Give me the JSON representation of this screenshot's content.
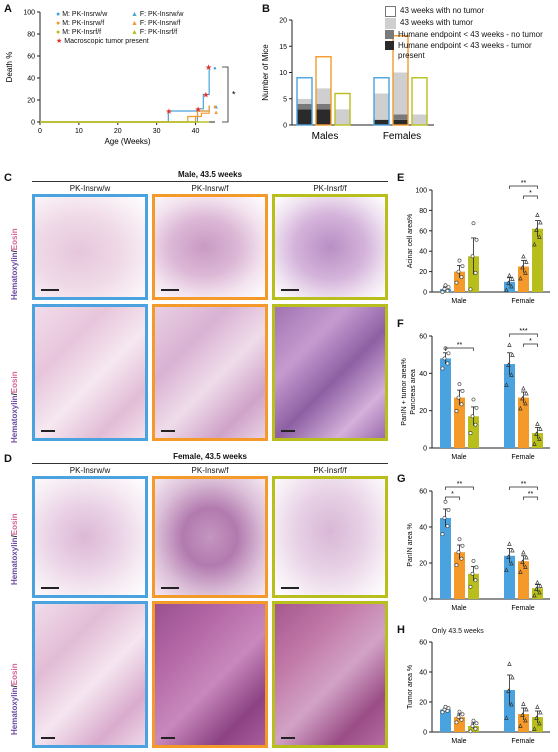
{
  "panels": {
    "a": "A",
    "b": "B",
    "c": "C",
    "d": "D",
    "e": "E",
    "f": "F",
    "g": "G",
    "h": "H"
  },
  "panelA": {
    "ylabel": "Death %",
    "xlabel": "Age (Weeks)",
    "yticks": [
      "100",
      "80",
      "60",
      "40",
      "20",
      "0"
    ],
    "xticks": [
      "0",
      "10",
      "20",
      "30",
      "40"
    ],
    "legend": [
      {
        "marker": "●",
        "color": "#4aa3df",
        "text": "M: PK-Insrw/w"
      },
      {
        "marker": "▲",
        "color": "#4aa3df",
        "text": "F: PK-Insrw/w"
      },
      {
        "marker": "●",
        "color": "#f39a2b",
        "text": "M: PK-Insrw/f"
      },
      {
        "marker": "▲",
        "color": "#f39a2b",
        "text": "F: PK-Insrw/f"
      },
      {
        "marker": "●",
        "color": "#b8bf1c",
        "text": "M: PK-Insrf/f"
      },
      {
        "marker": "▲",
        "color": "#b8bf1c",
        "text": "F: PK-Insrf/f"
      }
    ],
    "star_note": "Macroscopic tumor present",
    "sig": "*"
  },
  "panelB": {
    "ylabel": "Number of Mice",
    "yticks": [
      "20",
      "15",
      "10",
      "5",
      "0"
    ],
    "groups": [
      "Males",
      "Females"
    ],
    "legend": [
      {
        "swatch": "#ffffff",
        "text": "43 weeks with no tumor"
      },
      {
        "swatch": "#cfcfcf",
        "text": "43 weeks with tumor"
      },
      {
        "swatch": "#7a7a7a",
        "text": "Humane endpoint < 43 weeks - no tumor"
      },
      {
        "swatch": "#2a2a2a",
        "text": "Humane endpoint < 43 weeks - tumor present"
      }
    ]
  },
  "panelC": {
    "title": "Male, 43.5 weeks",
    "cols": [
      "PK-Insrw/w",
      "PK-Insrw/f",
      "PK-Insrf/f"
    ],
    "stain_h": "Hematoxylin",
    "stain_sep": "/",
    "stain_e": "Eosin"
  },
  "panelD": {
    "title": "Female, 43.5 weeks",
    "cols": [
      "PK-Insrw/w",
      "PK-Insrw/f",
      "PK-Insrf/f"
    ]
  },
  "panelE": {
    "ylabel": "Acinar cell area%",
    "yticks": [
      "100",
      "80",
      "60",
      "40",
      "20",
      "0"
    ],
    "groups": [
      "Male",
      "Female"
    ],
    "sig": [
      "**",
      "*"
    ]
  },
  "panelF": {
    "ylabel": "PanIN + tumor area%",
    "ylabel2": "Pancreas area",
    "yticks": [
      "60",
      "40",
      "20",
      "0"
    ],
    "groups": [
      "Male",
      "Female"
    ],
    "sig": [
      "**",
      "***",
      "*"
    ]
  },
  "panelG": {
    "ylabel": "PanIN area %",
    "yticks": [
      "60",
      "40",
      "20",
      "0"
    ],
    "groups": [
      "Male",
      "Female"
    ],
    "sig": [
      "**",
      "*",
      "**",
      "**"
    ]
  },
  "panelH": {
    "ylabel": "Tumor area %",
    "note": "Only 43.5 weeks",
    "yticks": [
      "60",
      "40",
      "20",
      "0"
    ],
    "groups": [
      "Male",
      "Female"
    ]
  },
  "chart_data": [
    {
      "type": "line",
      "panel": "A",
      "ylabel": "Death %",
      "xlabel": "Age (Weeks)",
      "xlim": [
        0,
        45
      ],
      "ylim": [
        0,
        100
      ],
      "series": [
        {
          "name": "M: PK-Insrw/w",
          "x": [
            0,
            40.5,
            42,
            43.5
          ],
          "y": [
            0,
            12,
            25,
            50
          ]
        },
        {
          "name": "F: PK-Insrw/w",
          "x": [
            0,
            33,
            40,
            43.5
          ],
          "y": [
            0,
            10,
            10,
            15
          ]
        },
        {
          "name": "M: PK-Insrw/f",
          "x": [
            0,
            38,
            40.5,
            43.5
          ],
          "y": [
            0,
            5,
            10,
            15
          ]
        },
        {
          "name": "F: PK-Insrw/f",
          "x": [
            0,
            40,
            41.5,
            43.5
          ],
          "y": [
            0,
            5,
            8,
            10
          ]
        },
        {
          "name": "M: PK-Insrf/f",
          "x": [
            0,
            43.5
          ],
          "y": [
            0,
            0
          ]
        },
        {
          "name": "F: PK-Insrf/f",
          "x": [
            0,
            43.5
          ],
          "y": [
            0,
            0
          ]
        }
      ]
    },
    {
      "type": "bar",
      "panel": "B",
      "categories": [
        "M w/w",
        "M w/f",
        "M f/f",
        "F w/w",
        "F w/f",
        "F f/f"
      ],
      "ylabel": "Number of Mice",
      "ylim": [
        0,
        20
      ],
      "series": [
        {
          "name": "Humane endpoint < 43 weeks - tumor present",
          "values": [
            3,
            3,
            0,
            1,
            1,
            0
          ]
        },
        {
          "name": "Humane endpoint < 43 weeks - no tumor",
          "values": [
            1,
            1,
            0,
            0,
            1,
            0
          ]
        },
        {
          "name": "43 weeks with tumor",
          "values": [
            1,
            3,
            3,
            5,
            8,
            2
          ]
        },
        {
          "name": "43 weeks with no tumor",
          "values": [
            4,
            6,
            3,
            3,
            7,
            7
          ]
        }
      ]
    },
    {
      "type": "bar",
      "panel": "E",
      "ylabel": "Acinar cell area%",
      "ylim": [
        0,
        100
      ],
      "categories": [
        "Male w/w",
        "Male w/f",
        "Male f/f",
        "Female w/w",
        "Female w/f",
        "Female f/f"
      ],
      "values": [
        3,
        20,
        35,
        10,
        25,
        62
      ],
      "errors": [
        2,
        6,
        18,
        4,
        6,
        8
      ]
    },
    {
      "type": "bar",
      "panel": "F",
      "ylabel": "PanIN + tumor area%",
      "ylim": [
        0,
        60
      ],
      "categories": [
        "Male w/w",
        "Male w/f",
        "Male f/f",
        "Female w/w",
        "Female w/f",
        "Female f/f"
      ],
      "values": [
        48,
        27,
        17,
        45,
        27,
        8
      ],
      "errors": [
        3,
        4,
        5,
        6,
        3,
        3
      ]
    },
    {
      "type": "bar",
      "panel": "G",
      "ylabel": "PanIN area %",
      "ylim": [
        0,
        60
      ],
      "categories": [
        "Male w/w",
        "Male w/f",
        "Male f/f",
        "Female w/w",
        "Female w/f",
        "Female f/f"
      ],
      "values": [
        45,
        26,
        14,
        24,
        21,
        6
      ],
      "errors": [
        5,
        4,
        4,
        4,
        3,
        2
      ]
    },
    {
      "type": "bar",
      "panel": "H",
      "ylabel": "Tumor area %",
      "ylim": [
        0,
        60
      ],
      "categories": [
        "Male w/w",
        "Male w/f",
        "Male f/f",
        "Female w/w",
        "Female w/f",
        "Female f/f"
      ],
      "values": [
        15,
        10,
        4,
        28,
        12,
        10
      ],
      "errors": [
        1,
        2,
        2,
        10,
        4,
        4
      ]
    }
  ],
  "colors": {
    "blue": "#4aa3df",
    "orange": "#f39a2b",
    "olive": "#b8bf1c",
    "hematoxylin": "#6b4aa0",
    "eosin": "#d6679a"
  }
}
